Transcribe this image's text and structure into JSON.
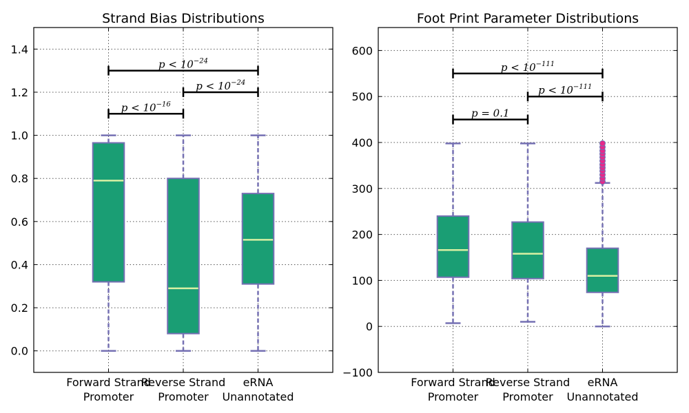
{
  "chart_data": [
    {
      "type": "box",
      "title": "Strand Bias Distributions",
      "categories": [
        "Forward Strand\nPromoter",
        "Reverse Strand\nPromoter",
        "eRNA\nUnannotated"
      ],
      "ylim": [
        -0.1,
        1.5
      ],
      "yticks": [
        0.0,
        0.2,
        0.4,
        0.6,
        0.8,
        1.0,
        1.2,
        1.4
      ],
      "ytick_labels": [
        "0.0",
        "0.2",
        "0.4",
        "0.6",
        "0.8",
        "1.0",
        "1.2",
        "1.4"
      ],
      "grid": true,
      "boxes": [
        {
          "whislo": 0.0,
          "q1": 0.32,
          "med": 0.79,
          "q3": 0.965,
          "whishi": 1.0
        },
        {
          "whislo": 0.0,
          "q1": 0.08,
          "med": 0.29,
          "q3": 0.8,
          "whishi": 1.0
        },
        {
          "whislo": 0.0,
          "q1": 0.31,
          "med": 0.515,
          "q3": 0.73,
          "whishi": 1.0
        }
      ],
      "fliers": [
        [],
        [],
        []
      ],
      "significance": [
        {
          "from": 0,
          "to": 1,
          "y": 1.1,
          "text": "p < 10",
          "exp": "−16"
        },
        {
          "from": 1,
          "to": 2,
          "y": 1.2,
          "text": "p < 10",
          "exp": "−24"
        },
        {
          "from": 0,
          "to": 2,
          "y": 1.3,
          "text": "p < 10",
          "exp": "−24"
        }
      ]
    },
    {
      "type": "box",
      "title": "Foot Print Parameter Distributions",
      "categories": [
        "Forward Strand\nPromoter",
        "Reverse Strand\nPromoter",
        "eRNA\nUnannotated"
      ],
      "ylim": [
        -100,
        650
      ],
      "yticks": [
        -100,
        0,
        100,
        200,
        300,
        400,
        500,
        600
      ],
      "ytick_labels": [
        "−100",
        "0",
        "100",
        "200",
        "300",
        "400",
        "500",
        "600"
      ],
      "grid": true,
      "boxes": [
        {
          "whislo": 7,
          "q1": 107,
          "med": 166,
          "q3": 240,
          "whishi": 398
        },
        {
          "whislo": 10,
          "q1": 104,
          "med": 158,
          "q3": 227,
          "whishi": 398
        },
        {
          "whislo": 0,
          "q1": 74,
          "med": 110,
          "q3": 170,
          "whishi": 312
        }
      ],
      "fliers": [
        [],
        [],
        [
          315,
          322,
          330,
          338,
          345,
          352,
          360,
          368,
          375,
          382,
          390,
          398
        ]
      ],
      "significance": [
        {
          "from": 0,
          "to": 1,
          "y": 450,
          "text": "p = 0.1",
          "exp": ""
        },
        {
          "from": 1,
          "to": 2,
          "y": 500,
          "text": "p < 10",
          "exp": "−111"
        },
        {
          "from": 0,
          "to": 2,
          "y": 550,
          "text": "p < 10",
          "exp": "−111"
        }
      ]
    }
  ],
  "colors": {
    "box_fill": "#1a9e74",
    "box_edge": "#7570b3",
    "median": "#d9f0a3",
    "whisker": "#7570b3",
    "flier_fill": "#e7298a",
    "flier_edge": "#7570b3",
    "bracket": "#000000",
    "grid": "#555555"
  }
}
